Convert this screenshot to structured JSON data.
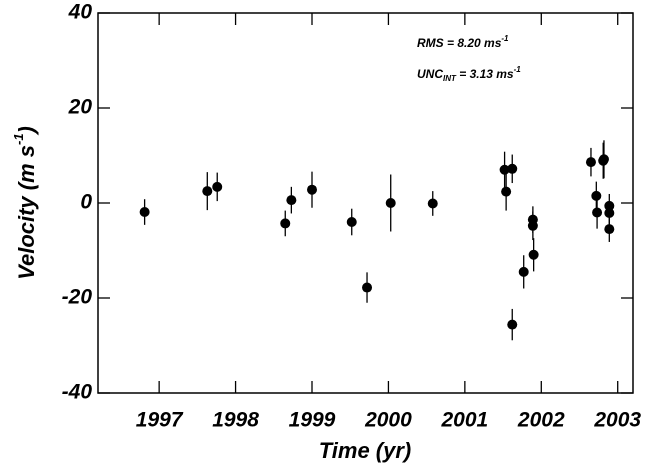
{
  "chart_data": {
    "type": "scatter",
    "x_label": "Time (yr)",
    "y_label": {
      "text": "Velocity  (m  s",
      "superscript": "-1",
      "close": ")"
    },
    "annotations": [
      {
        "text": "RMS =  8.20 ms",
        "superscript": "-1"
      },
      {
        "text": "UNC",
        "subscript": "INT",
        "rest": " = 3.13 ms",
        "superscript": "-1"
      }
    ],
    "x": [
      1996.81,
      1997.63,
      1997.76,
      1998.65,
      1998.73,
      1999.0,
      1999.52,
      1999.72,
      2000.03,
      2000.58,
      2001.52,
      2001.54,
      2001.62,
      2001.62,
      2001.77,
      2001.89,
      2001.89,
      2001.9,
      2002.65,
      2002.72,
      2002.73,
      2002.81,
      2002.82,
      2002.89,
      2002.89,
      2002.89
    ],
    "values": [
      -1.9,
      2.5,
      3.4,
      -4.3,
      0.6,
      2.8,
      -4.0,
      -17.8,
      0,
      -0.1,
      7.0,
      2.4,
      7.2,
      -25.6,
      -14.5,
      -3.5,
      -4.8,
      -10.9,
      8.6,
      1.5,
      -2.0,
      8.9,
      9.2,
      -0.6,
      -2.1,
      -5.5
    ],
    "errors": [
      2.7,
      4.0,
      3.0,
      2.7,
      2.8,
      3.8,
      2.8,
      3.2,
      6.0,
      2.6,
      3.8,
      4.0,
      3.0,
      3.3,
      3.5,
      2.8,
      3.0,
      3.5,
      3.0,
      3.0,
      3.4,
      3.8,
      4.0,
      2.5,
      2.5,
      2.7
    ],
    "color": "#000000",
    "xlim": [
      1996.2,
      2003.2
    ],
    "ylim": [
      -40,
      40
    ],
    "xticks": [
      1997,
      1998,
      1999,
      2000,
      2001,
      2002,
      2003
    ],
    "yticks": [
      -40,
      -20,
      0,
      20,
      40
    ]
  }
}
